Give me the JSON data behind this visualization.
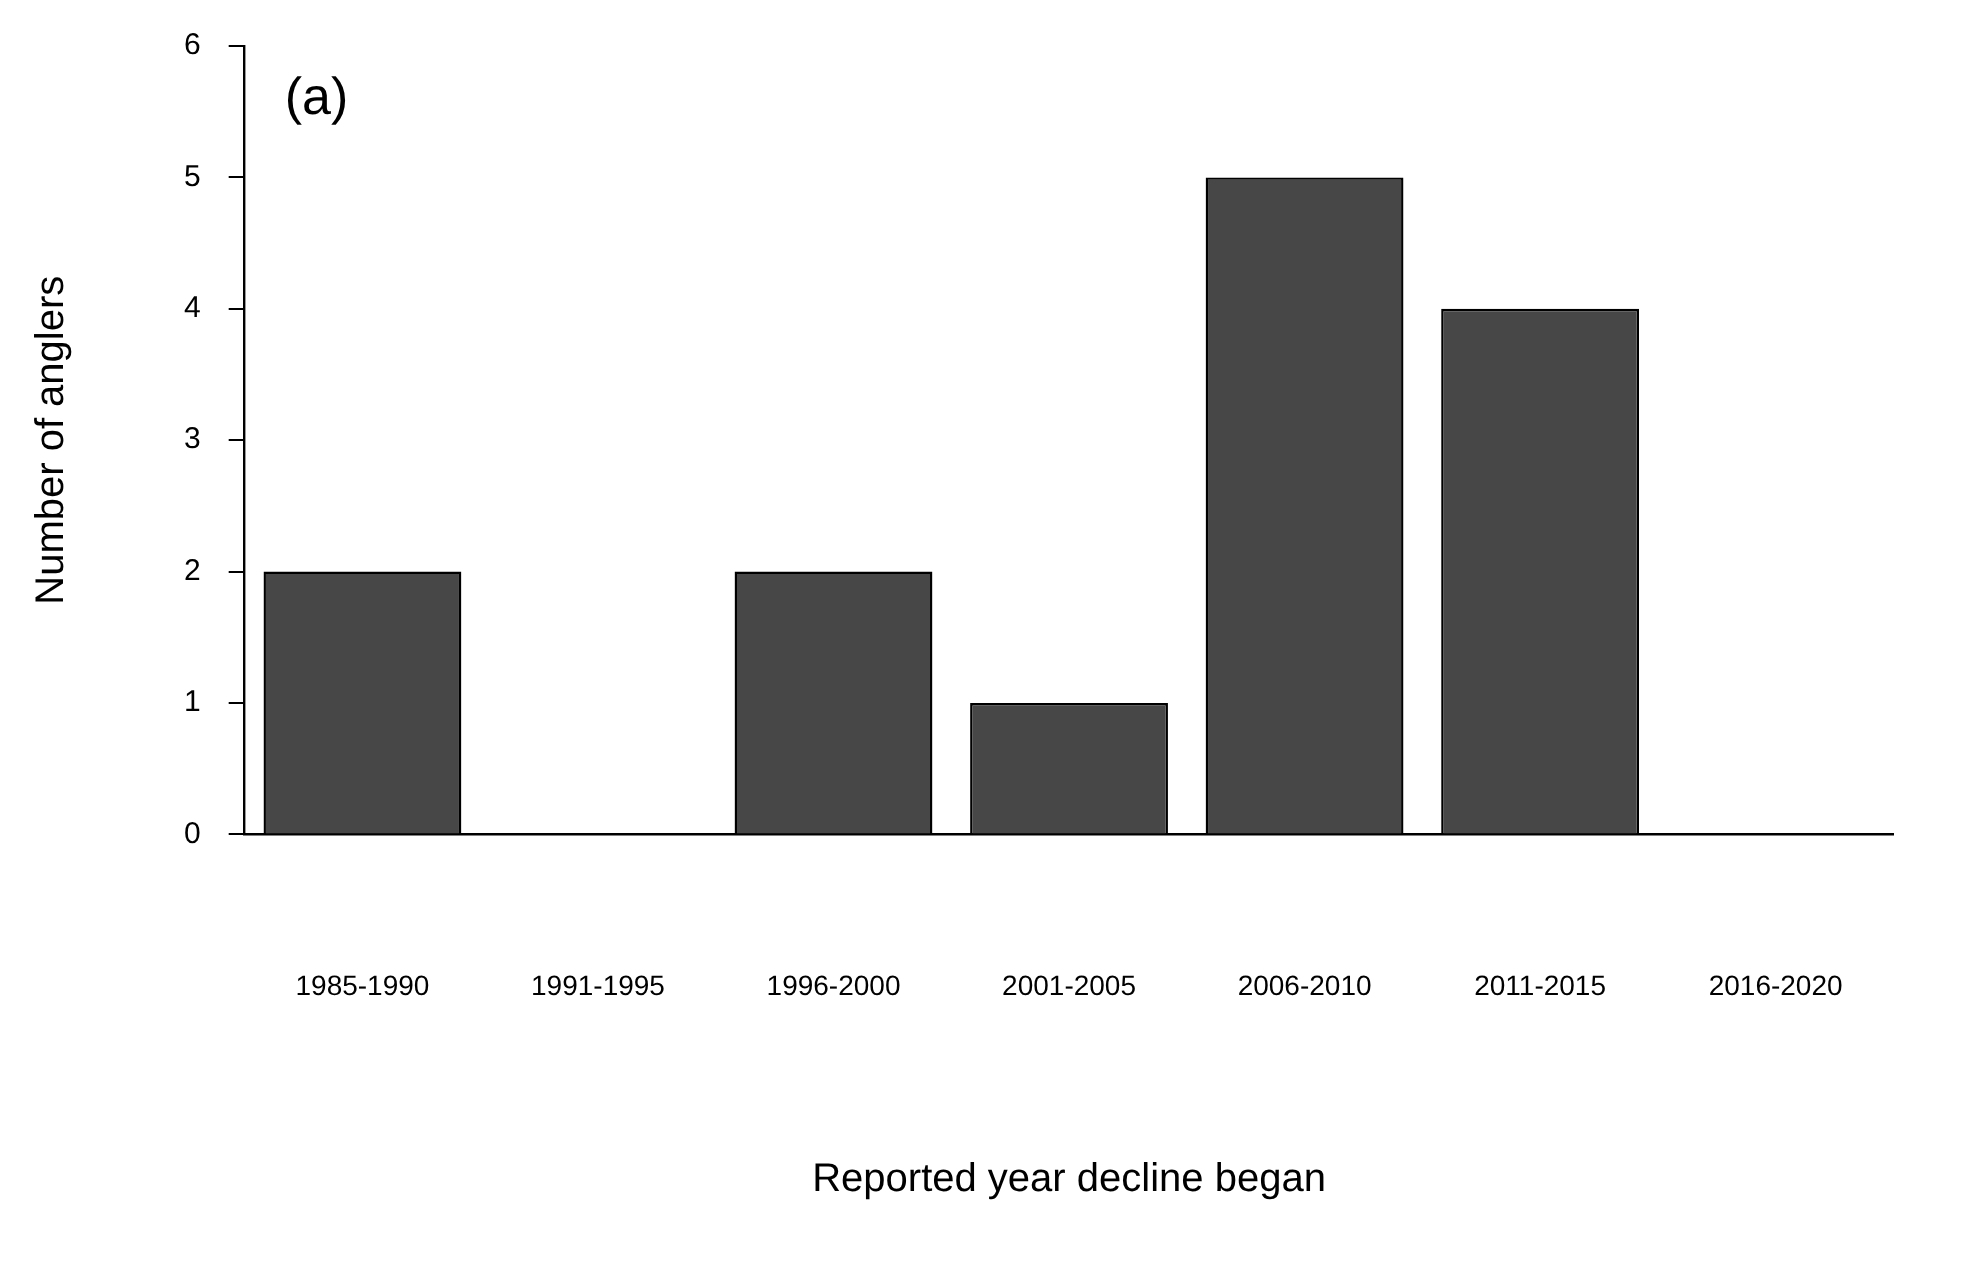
{
  "chart_data": {
    "type": "bar",
    "xlabel": "Reported year decline began",
    "ylabel": "Number of anglers",
    "categories": [
      "1985-1990",
      "1991-1995",
      "1996-2000",
      "2001-2005",
      "2006-2010",
      "2011-2015",
      "2016-2020"
    ],
    "values": [
      2,
      0,
      2,
      1,
      5,
      4,
      0
    ],
    "color": "#474747",
    "ylim": [
      0,
      6
    ],
    "yticks": [
      0,
      1,
      2,
      3,
      4,
      5,
      6
    ],
    "grid": false,
    "legend": false,
    "annotations": [
      "(a)"
    ]
  }
}
